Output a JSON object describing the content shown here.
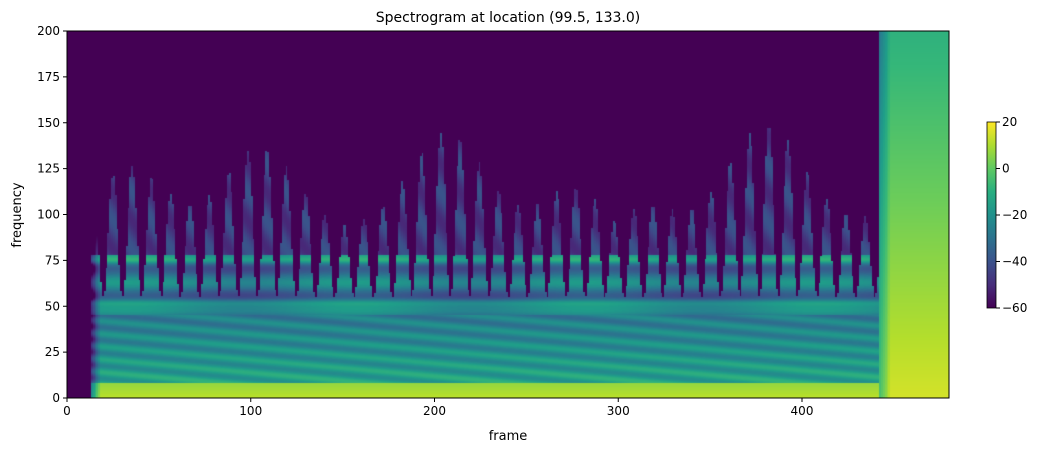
{
  "chart_data": {
    "type": "heatmap",
    "title": "Spectrogram at location (99.5, 133.0)",
    "xlabel": "frame",
    "ylabel": "frequency",
    "xlim": [
      0,
      480
    ],
    "ylim": [
      0,
      200
    ],
    "x_ticks": [
      0,
      100,
      200,
      300,
      400
    ],
    "y_ticks": [
      0,
      25,
      50,
      75,
      100,
      125,
      150,
      175,
      200
    ],
    "colorbar": {
      "range": [
        -60,
        20
      ],
      "ticks": [
        20,
        0,
        -20,
        -40,
        -60
      ],
      "tick_labels": [
        "20",
        "0",
        "−20",
        "−40",
        "−60"
      ],
      "colormap": "viridis"
    },
    "grid": false,
    "description_values": {
      "signal_onset_frame": 13,
      "flat_region_start_frame": 442,
      "floor_value": -60,
      "peak_value": 20
    }
  }
}
